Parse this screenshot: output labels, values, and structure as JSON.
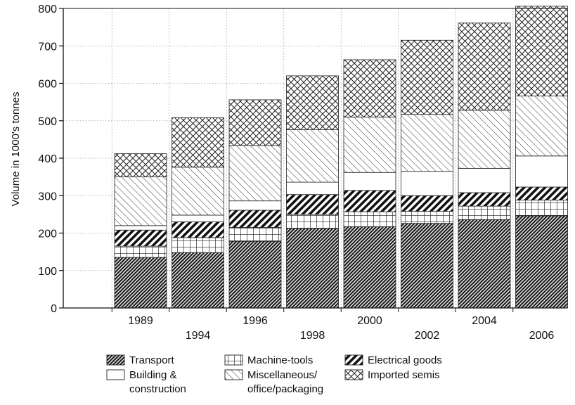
{
  "chart_data": {
    "type": "bar",
    "stacked": true,
    "title": "",
    "xlabel": "",
    "ylabel": "Volume in 1000's tonnes",
    "ylim": [
      0,
      800
    ],
    "yticks": [
      0,
      100,
      200,
      300,
      400,
      500,
      600,
      700,
      800
    ],
    "grid": true,
    "legend_position": "bottom",
    "categories": [
      "1989",
      "1994",
      "1996",
      "1998",
      "2000",
      "2002",
      "2004",
      "2006"
    ],
    "series": [
      {
        "name": "Transport",
        "pattern": "dense-diagonal",
        "values": [
          135,
          148,
          178,
          212,
          217,
          226,
          236,
          246
        ]
      },
      {
        "name": "Machine-tools",
        "pattern": "grid",
        "values": [
          30,
          40,
          37,
          38,
          40,
          32,
          36,
          42
        ]
      },
      {
        "name": "Electrical goods",
        "pattern": "bold-diagonal",
        "values": [
          43,
          42,
          46,
          53,
          57,
          42,
          36,
          35
        ]
      },
      {
        "name": "Building & construction",
        "pattern": "white",
        "values": [
          12,
          18,
          25,
          33,
          48,
          65,
          65,
          83
        ]
      },
      {
        "name": "Miscellaneous/ office/packaging",
        "pattern": "light-diagonal",
        "values": [
          130,
          128,
          148,
          140,
          148,
          152,
          155,
          160
        ]
      },
      {
        "name": "Imported semis",
        "pattern": "crosshatch",
        "values": [
          62,
          132,
          122,
          144,
          153,
          198,
          233,
          240
        ]
      }
    ]
  },
  "legend": {
    "items": [
      {
        "pattern": "dense-diagonal",
        "lines": [
          "Transport"
        ]
      },
      {
        "pattern": "grid",
        "lines": [
          "Machine-tools"
        ]
      },
      {
        "pattern": "bold-diagonal",
        "lines": [
          "Electrical goods"
        ]
      },
      {
        "pattern": "white",
        "lines": [
          "Building &",
          "construction"
        ]
      },
      {
        "pattern": "light-diagonal",
        "lines": [
          "Miscellaneous/",
          "office/packaging"
        ]
      },
      {
        "pattern": "crosshatch",
        "lines": [
          "Imported semis"
        ]
      }
    ]
  }
}
